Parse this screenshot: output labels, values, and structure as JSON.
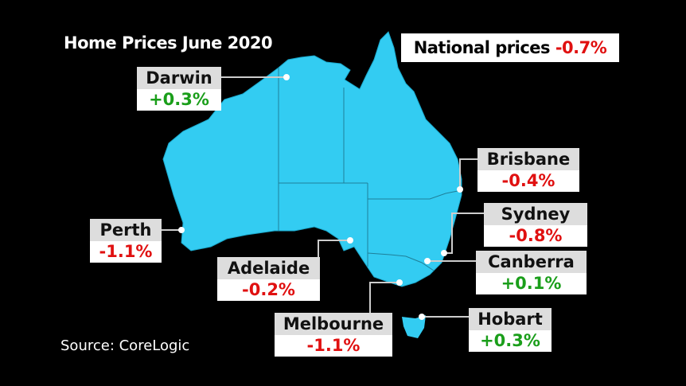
{
  "title": "Home Prices June 2020",
  "national": {
    "label": "National prices",
    "change": "-0.7%"
  },
  "cities": [
    {
      "name": "Darwin",
      "change": "+0.3%"
    },
    {
      "name": "Brisbane",
      "change": "-0.4%"
    },
    {
      "name": "Sydney",
      "change": "-0.8%"
    },
    {
      "name": "Canberra",
      "change": "+0.1%"
    },
    {
      "name": "Perth",
      "change": "-1.1%"
    },
    {
      "name": "Adelaide",
      "change": "-0.2%"
    },
    {
      "name": "Melbourne",
      "change": "-1.1%"
    },
    {
      "name": "Hobart",
      "change": "+0.3%"
    }
  ],
  "source": "Source: CoreLogic"
}
